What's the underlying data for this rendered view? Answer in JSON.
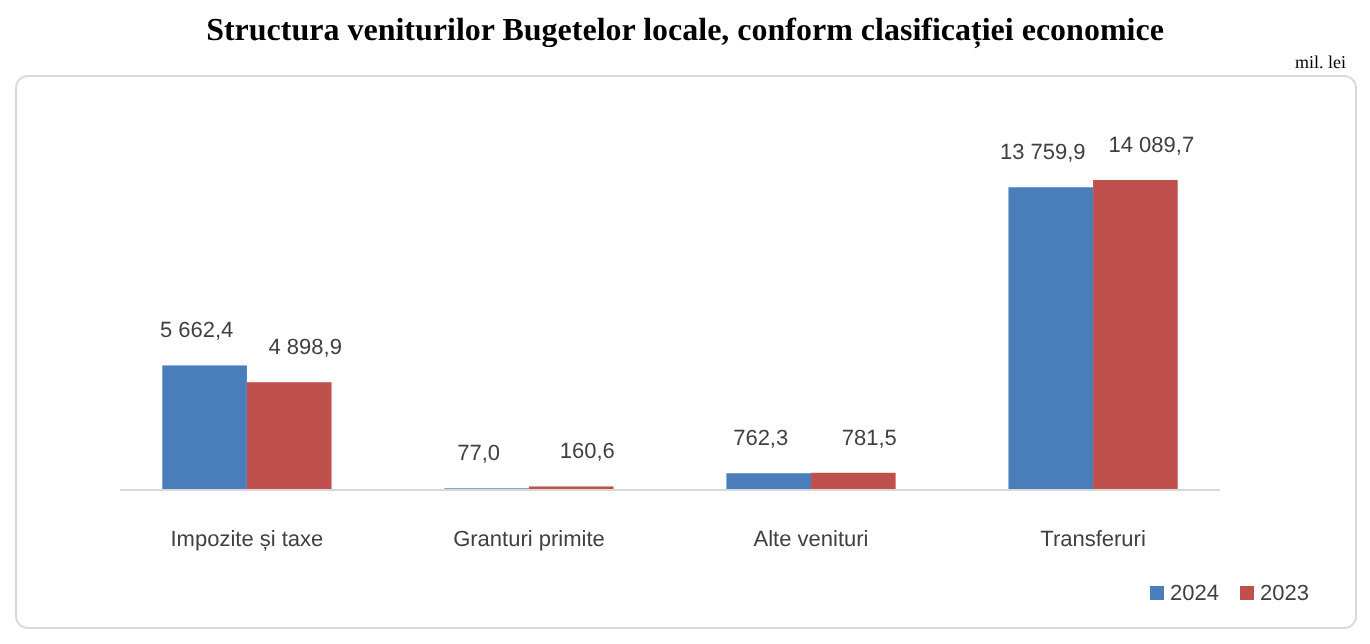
{
  "chart_data": {
    "type": "bar",
    "title": "Structura veniturilor Bugetelor locale, conform clasificației economice",
    "annotations": [
      "mil. lei"
    ],
    "categories": [
      "Impozite și taxe",
      "Granturi primite",
      "Alte venituri",
      "Transferuri"
    ],
    "series": [
      {
        "name": "2024",
        "color": "#4a7ebb",
        "values": [
          5662.4,
          77.0,
          762.3,
          13759.9
        ],
        "value_labels": [
          "5 662,4",
          "77,0",
          "762,3",
          "13 759,9"
        ]
      },
      {
        "name": "2023",
        "color": "#c0504d",
        "values": [
          4898.9,
          160.6,
          781.5,
          14089.7
        ],
        "value_labels": [
          "4 898,9",
          "160,6",
          "781,5",
          "14 089,7"
        ]
      }
    ],
    "legend": "bottom right"
  }
}
